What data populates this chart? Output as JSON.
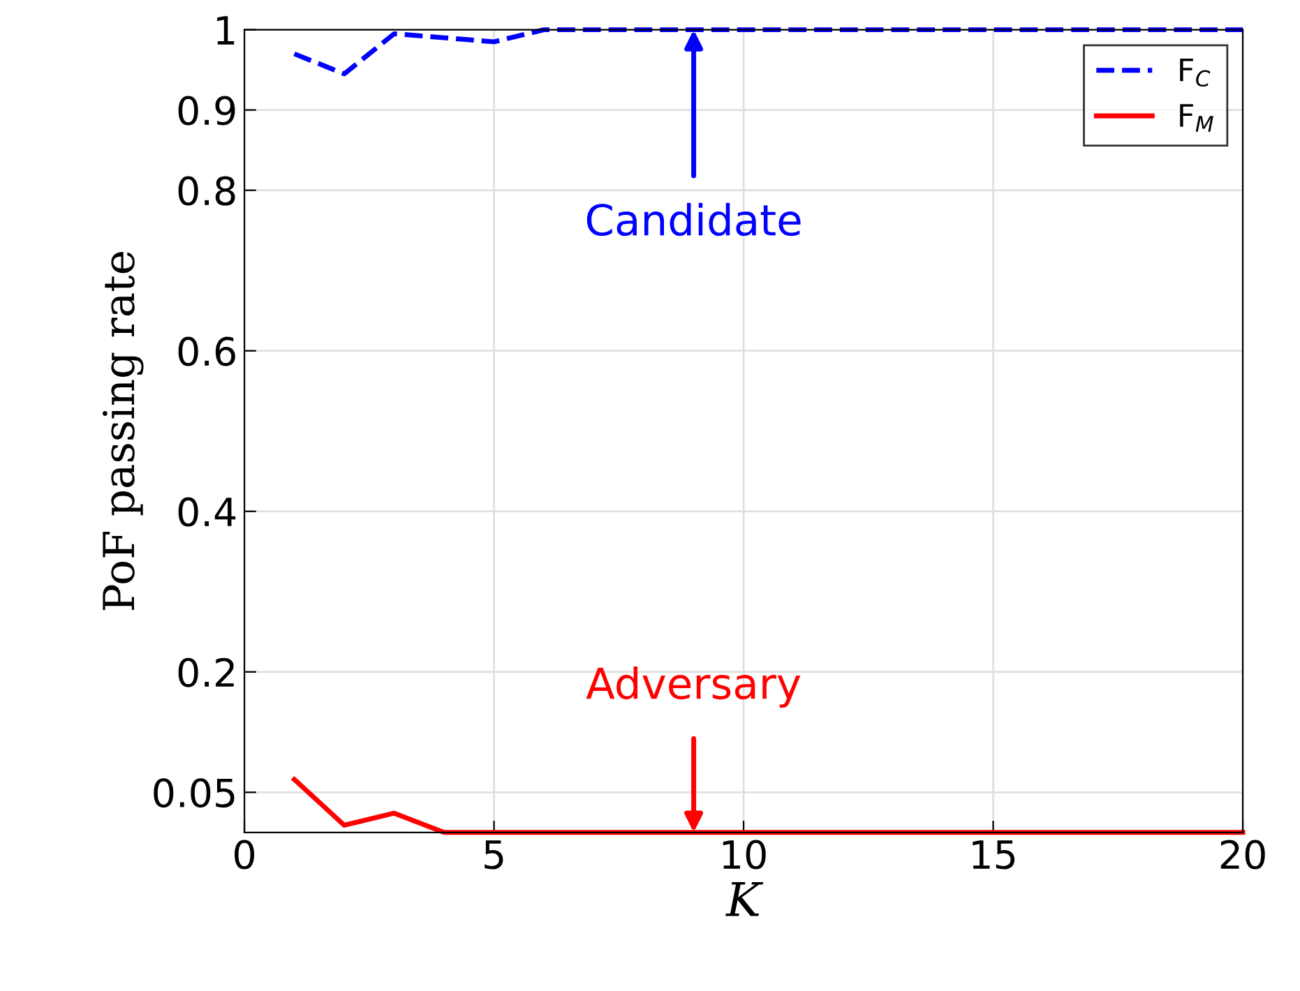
{
  "chart_data": {
    "type": "line",
    "xlabel": "K",
    "ylabel": "PoF passing rate",
    "x": [
      1,
      2,
      3,
      4,
      5,
      6,
      7,
      8,
      9,
      10,
      11,
      12,
      13,
      14,
      15,
      16,
      17,
      18,
      19,
      20
    ],
    "series": [
      {
        "name": "F$_{C}$",
        "color": "#0000ff",
        "line_style": "dashed",
        "values": [
          0.97,
          0.945,
          0.995,
          0.99,
          0.985,
          1,
          1,
          1,
          1,
          1,
          1,
          1,
          1,
          1,
          1,
          1,
          1,
          1,
          1,
          1
        ]
      },
      {
        "name": "F$_{M}$",
        "color": "#ff0000",
        "line_style": "solid",
        "values": [
          0.066,
          0.009,
          0.024,
          0,
          0,
          0,
          0,
          0,
          0,
          0,
          0,
          0,
          0,
          0,
          0,
          0,
          0,
          0,
          0,
          0
        ]
      }
    ],
    "annotations": [
      {
        "text": "Candidate",
        "x": 9,
        "y": 1
      },
      {
        "text": "Adversary",
        "x": 9,
        "y": 0
      }
    ],
    "xlim": [
      0,
      20
    ],
    "xticks": [
      0,
      5,
      10,
      15,
      20
    ],
    "ylim": [
      0,
      1
    ],
    "yticks": [
      0.05,
      0.2,
      0.4,
      0.6,
      0.8,
      0.9,
      1
    ],
    "grid": true,
    "legend": "top right",
    "marker": "none"
  }
}
